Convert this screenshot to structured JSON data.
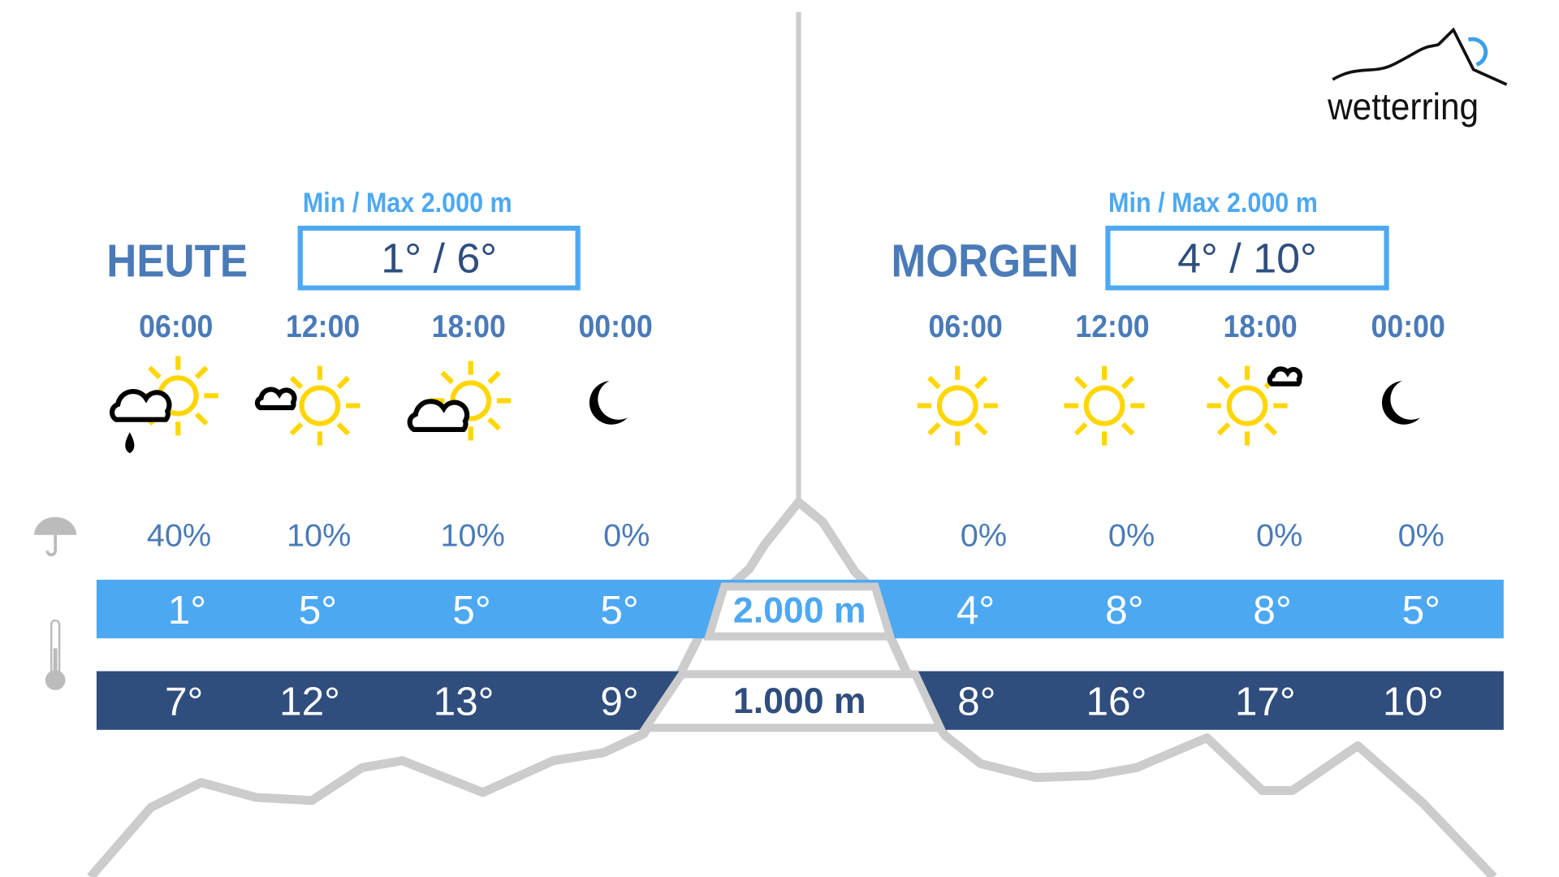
{
  "brand": {
    "name": "wetterring"
  },
  "colors": {
    "light_blue": "#4da8f2",
    "dark_blue": "#2f4d7d",
    "label_blue": "#4a7ab8",
    "mountain": "#cccccc",
    "sun": "#ffd600"
  },
  "today": {
    "label": "HEUTE",
    "minmax_caption": "Min / Max 2.000 m",
    "minmax": "1° / 6°",
    "slots": [
      {
        "time": "06:00",
        "icon": "sun-cloud-rain-icon",
        "precip": "40%",
        "t2000": "1°",
        "t1000": "7°"
      },
      {
        "time": "12:00",
        "icon": "sun-small-cloud-icon",
        "precip": "10%",
        "t2000": "5°",
        "t1000": "12°"
      },
      {
        "time": "18:00",
        "icon": "sun-cloud-icon",
        "precip": "10%",
        "t2000": "5°",
        "t1000": "13°"
      },
      {
        "time": "00:00",
        "icon": "moon-icon",
        "precip": "0%",
        "t2000": "5°",
        "t1000": "9°"
      }
    ]
  },
  "tomorrow": {
    "label": "MORGEN",
    "minmax_caption": "Min / Max 2.000 m",
    "minmax": "4° / 10°",
    "slots": [
      {
        "time": "06:00",
        "icon": "sun-icon",
        "precip": "0%",
        "t2000": "4°",
        "t1000": "8°"
      },
      {
        "time": "12:00",
        "icon": "sun-icon",
        "precip": "0%",
        "t2000": "8°",
        "t1000": "16°"
      },
      {
        "time": "18:00",
        "icon": "sun-tiny-cloud-icon",
        "precip": "0%",
        "t2000": "8°",
        "t1000": "17°"
      },
      {
        "time": "00:00",
        "icon": "moon-icon",
        "precip": "0%",
        "t2000": "5°",
        "t1000": "10°"
      }
    ]
  },
  "altitudes": {
    "high": "2.000 m",
    "low": "1.000 m"
  }
}
